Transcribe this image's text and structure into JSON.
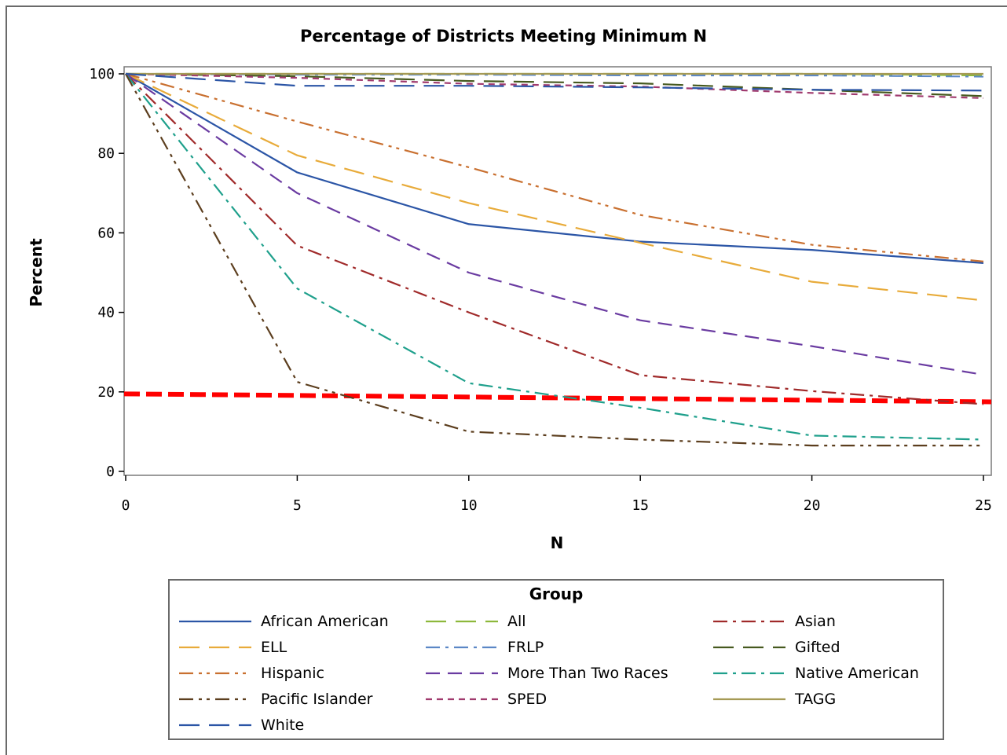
{
  "chart_data": {
    "type": "line",
    "title": "Percentage of Districts Meeting Minimum N",
    "xlabel": "N",
    "ylabel": "Percent",
    "xlim": [
      0,
      25
    ],
    "ylim": [
      0,
      100
    ],
    "xticks": [
      0,
      5,
      10,
      15,
      20,
      25
    ],
    "yticks": [
      0,
      20,
      40,
      60,
      80,
      100
    ],
    "grid": false,
    "legend_title": "Group",
    "legend_placement": "bottom",
    "x": [
      0,
      5,
      10,
      15,
      20,
      25
    ],
    "series": [
      {
        "name": "African American",
        "color": "#2b55a6",
        "dash": "solid",
        "values": [
          100,
          75.2,
          62.2,
          57.8,
          55.7,
          52.4
        ]
      },
      {
        "name": "All",
        "color": "#8db83b",
        "dash": "longdash",
        "values": [
          100,
          100,
          100,
          100,
          100,
          99.6
        ]
      },
      {
        "name": "Asian",
        "color": "#a02a2a",
        "dash": "dashdot",
        "values": [
          100,
          56.8,
          40.0,
          24.2,
          20.2,
          16.9
        ]
      },
      {
        "name": "ELL",
        "color": "#e8ab3a",
        "dash": "longdash",
        "values": [
          100,
          79.5,
          67.5,
          57.5,
          47.7,
          43.0
        ]
      },
      {
        "name": "FRLP",
        "color": "#5b87c6",
        "dash": "dashdot",
        "values": [
          100,
          99.8,
          99.8,
          99.6,
          99.6,
          99.3
        ]
      },
      {
        "name": "Gifted",
        "color": "#46591f",
        "dash": "longdash",
        "values": [
          100,
          99.4,
          98.2,
          97.6,
          96.0,
          94.4
        ]
      },
      {
        "name": "Hispanic",
        "color": "#c97030",
        "dash": "dashdotdot",
        "values": [
          100,
          88.0,
          76.5,
          64.5,
          57.0,
          52.8
        ]
      },
      {
        "name": "More Than Two Races",
        "color": "#6a3ba1",
        "dash": "dash",
        "values": [
          100,
          70.0,
          50.0,
          38.0,
          31.5,
          24.3
        ]
      },
      {
        "name": "Native American",
        "color": "#1fa08c",
        "dash": "dashdot",
        "values": [
          100,
          46.0,
          22.2,
          16.0,
          9.0,
          8.0
        ]
      },
      {
        "name": "Pacific Islander",
        "color": "#5c3e1e",
        "dash": "dashdotdot",
        "values": [
          100,
          22.5,
          10.0,
          8.0,
          6.5,
          6.5
        ]
      },
      {
        "name": "SPED",
        "color": "#a03a6e",
        "dash": "shortdash",
        "values": [
          100,
          99.0,
          97.5,
          96.8,
          95.2,
          93.9
        ]
      },
      {
        "name": "TAGG",
        "color": "#a59a55",
        "dash": "solid",
        "values": [
          100,
          100,
          100,
          100,
          100,
          100
        ]
      },
      {
        "name": "White",
        "color": "#2b55a6",
        "dash": "longdash",
        "values": [
          100,
          97.0,
          97.0,
          96.6,
          96.0,
          95.8
        ]
      }
    ],
    "reference_line": {
      "color": "#ff0000",
      "dash": "dash",
      "y_start": 19.5,
      "y_end": 17.5
    }
  }
}
